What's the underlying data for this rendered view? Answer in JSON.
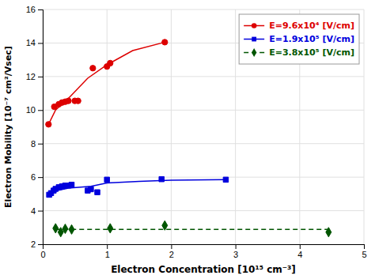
{
  "chart_data": {
    "type": "scatter",
    "xlabel": "Electron Concentration [10¹⁵ cm⁻³]",
    "ylabel": "Electron Mobility [10⁻⁷ cm²/Vsec]",
    "xlim": [
      0,
      5
    ],
    "ylim": [
      2,
      16
    ],
    "xticks": [
      0,
      1,
      2,
      3,
      4,
      5
    ],
    "yticks": [
      2,
      4,
      6,
      8,
      10,
      12,
      14,
      16
    ],
    "grid": true,
    "legend": "upper-right",
    "series": [
      {
        "name": "E=9.6x10⁴ [V/cm]",
        "color": "#dd0000",
        "marker": "circle",
        "line_style": "solid",
        "x": [
          0.09,
          0.18,
          0.25,
          0.3,
          0.35,
          0.4,
          0.5,
          0.55,
          0.78,
          1.0,
          1.05,
          1.9
        ],
        "values": [
          9.15,
          10.2,
          10.35,
          10.45,
          10.5,
          10.55,
          10.55,
          10.55,
          12.5,
          12.6,
          12.8,
          14.05
        ],
        "fit_x": [
          0.09,
          0.2,
          0.4,
          0.7,
          1.0,
          1.4,
          1.9
        ],
        "fit_values": [
          9.15,
          10.0,
          10.7,
          11.9,
          12.7,
          13.55,
          14.05
        ]
      },
      {
        "name": "E=1.9x10⁵ [V/cm]",
        "color": "#0000dd",
        "marker": "square",
        "line_style": "solid",
        "x": [
          0.1,
          0.13,
          0.17,
          0.2,
          0.25,
          0.3,
          0.35,
          0.4,
          0.45,
          0.7,
          0.75,
          0.85,
          1.0,
          1.85,
          2.85
        ],
        "values": [
          4.95,
          5.05,
          5.2,
          5.3,
          5.4,
          5.45,
          5.5,
          5.5,
          5.55,
          5.2,
          5.28,
          5.1,
          5.85,
          5.88,
          5.85
        ],
        "fit_x": [
          0.1,
          0.4,
          0.75,
          1.0,
          1.5,
          2.0,
          2.85
        ],
        "fit_values": [
          5.1,
          5.35,
          5.45,
          5.65,
          5.75,
          5.82,
          5.85
        ]
      },
      {
        "name": "E=3.8x10⁵ [V/cm]",
        "color": "#005500",
        "marker": "diamond",
        "line_style": "dashed",
        "x": [
          0.2,
          0.28,
          0.35,
          0.45,
          1.05,
          1.9,
          4.45
        ],
        "values": [
          2.95,
          2.72,
          2.92,
          2.88,
          2.95,
          3.12,
          2.72
        ],
        "fit_x": [
          0.2,
          1.0,
          2.0,
          3.0,
          4.45
        ],
        "fit_values": [
          2.88,
          2.88,
          2.88,
          2.88,
          2.88
        ]
      }
    ]
  }
}
